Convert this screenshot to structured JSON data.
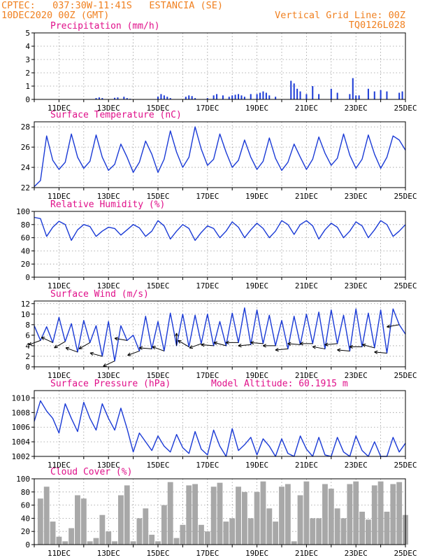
{
  "header": {
    "line1_left": "CPTEC:   037:30W-11:41S   ESTANCIA (SE)",
    "line2_left": "10DEC2020 00Z (GMT)",
    "line2_right": "Vertical Grid Line: 00Z",
    "line3_right": "TQ0126L028"
  },
  "colors": {
    "header": "#f08020",
    "title": "#e0108a",
    "series": "#1a3ad6",
    "cloud": "#a8a8a8",
    "arrow": "#000000",
    "grid": "#9a9a9a"
  },
  "x_axis": {
    "start": "2020-12-10T00Z",
    "end": "2020-12-25T00Z",
    "tick_labels": [
      "11DEC",
      "13DEC",
      "15DEC",
      "17DEC",
      "19DEC",
      "21DEC",
      "23DEC",
      "25DEC"
    ]
  },
  "chart_data": [
    {
      "id": "precip",
      "type": "bar",
      "title": "Precipitation (mm/h)",
      "ylim": [
        0,
        5
      ],
      "yticks": [
        0,
        1,
        2,
        3,
        4,
        5
      ],
      "x": [
        "12DEC12Z",
        "12DEC15Z",
        "12DEC18Z",
        "13DEC06Z",
        "13DEC09Z",
        "13DEC15Z",
        "13DEC18Z",
        "13DEC21Z",
        "15DEC00Z",
        "15DEC03Z",
        "15DEC06Z",
        "15DEC09Z",
        "15DEC12Z",
        "16DEC03Z",
        "16DEC06Z",
        "16DEC09Z",
        "16DEC12Z",
        "17DEC00Z",
        "17DEC06Z",
        "17DEC09Z",
        "17DEC15Z",
        "17DEC21Z",
        "18DEC00Z",
        "18DEC03Z",
        "18DEC06Z",
        "18DEC09Z",
        "18DEC12Z",
        "18DEC18Z",
        "19DEC00Z",
        "19DEC03Z",
        "19DEC06Z",
        "19DEC09Z",
        "19DEC12Z",
        "19DEC18Z",
        "20DEC09Z",
        "20DEC12Z",
        "20DEC15Z",
        "20DEC18Z",
        "21DEC00Z",
        "21DEC06Z",
        "21DEC12Z",
        "22DEC00Z",
        "22DEC06Z",
        "22DEC18Z",
        "22DEC21Z",
        "23DEC00Z",
        "23DEC03Z",
        "23DEC12Z",
        "23DEC18Z",
        "24DEC00Z",
        "24DEC06Z",
        "24DEC18Z",
        "24DEC21Z"
      ],
      "values": [
        0.1,
        0.15,
        0.1,
        0.12,
        0.15,
        0.2,
        0.1,
        0.05,
        0.2,
        0.4,
        0.3,
        0.2,
        0.1,
        0.2,
        0.3,
        0.25,
        0.1,
        0.1,
        0.3,
        0.4,
        0.3,
        0.2,
        0.3,
        0.35,
        0.4,
        0.3,
        0.2,
        0.4,
        0.4,
        0.5,
        0.6,
        0.5,
        0.3,
        0.2,
        1.4,
        1.2,
        0.8,
        0.6,
        0.4,
        1.0,
        0.4,
        0.8,
        0.5,
        0.4,
        1.6,
        0.3,
        0.3,
        0.8,
        0.6,
        0.7,
        0.6,
        0.5,
        0.6
      ]
    },
    {
      "id": "temp",
      "type": "line",
      "title": "Surface Temperature (nC)",
      "ylim": [
        22,
        28.5
      ],
      "yticks": [
        22,
        24,
        26,
        28
      ],
      "x_hours": [
        0,
        6,
        12,
        18,
        24,
        30,
        36,
        42,
        48,
        54,
        60,
        66,
        72,
        78,
        84,
        90,
        96,
        102,
        108,
        114,
        120,
        126,
        132,
        138,
        144,
        150,
        156,
        162,
        168,
        174,
        180,
        186,
        192,
        198,
        204,
        210,
        216,
        222,
        228,
        234,
        240,
        246,
        252,
        258,
        264,
        270,
        276,
        282,
        288,
        294,
        300,
        306,
        312,
        318,
        324,
        330,
        336,
        342,
        348,
        354,
        360
      ],
      "values": [
        22.1,
        22.7,
        27.1,
        24.7,
        23.8,
        24.5,
        27.3,
        25.0,
        23.9,
        24.6,
        27.2,
        25.0,
        23.7,
        24.3,
        26.3,
        25.0,
        23.5,
        24.5,
        26.6,
        25.3,
        23.5,
        24.8,
        27.6,
        25.5,
        24.0,
        25.0,
        28.0,
        25.8,
        24.2,
        24.8,
        27.3,
        25.5,
        24.0,
        24.7,
        26.7,
        25.0,
        23.8,
        24.6,
        26.9,
        24.9,
        23.7,
        24.5,
        26.3,
        25.0,
        23.8,
        24.8,
        27.0,
        25.4,
        24.2,
        24.9,
        27.3,
        25.2,
        23.9,
        24.8,
        27.2,
        25.3,
        23.9,
        25.0,
        27.1,
        26.7,
        25.7
      ]
    },
    {
      "id": "rh",
      "type": "line",
      "title": "Relative Humidity (%)",
      "ylim": [
        0,
        100
      ],
      "yticks": [
        0,
        20,
        40,
        60,
        80,
        100
      ],
      "x_hours": [
        0,
        6,
        12,
        18,
        24,
        30,
        36,
        42,
        48,
        54,
        60,
        66,
        72,
        78,
        84,
        90,
        96,
        102,
        108,
        114,
        120,
        126,
        132,
        138,
        144,
        150,
        156,
        162,
        168,
        174,
        180,
        186,
        192,
        198,
        204,
        210,
        216,
        222,
        228,
        234,
        240,
        246,
        252,
        258,
        264,
        270,
        276,
        282,
        288,
        294,
        300,
        306,
        312,
        318,
        324,
        330,
        336,
        342,
        348,
        354,
        360
      ],
      "values": [
        91,
        89,
        62,
        76,
        85,
        80,
        56,
        72,
        80,
        77,
        62,
        70,
        76,
        74,
        64,
        72,
        80,
        75,
        62,
        70,
        86,
        78,
        58,
        70,
        80,
        74,
        56,
        68,
        78,
        74,
        60,
        70,
        84,
        76,
        60,
        72,
        82,
        74,
        60,
        70,
        86,
        80,
        65,
        80,
        86,
        78,
        58,
        72,
        82,
        76,
        60,
        70,
        84,
        78,
        60,
        72,
        86,
        80,
        62,
        70,
        80
      ]
    },
    {
      "id": "wind",
      "type": "line",
      "title": "Surface Wind (m/s)",
      "ylim": [
        0,
        12.5
      ],
      "yticks": [
        0,
        2,
        4,
        6,
        8,
        10,
        12
      ],
      "x_hours": [
        0,
        6,
        12,
        18,
        24,
        30,
        36,
        42,
        48,
        54,
        60,
        66,
        72,
        78,
        84,
        90,
        96,
        102,
        108,
        114,
        120,
        126,
        132,
        138,
        144,
        150,
        156,
        162,
        168,
        174,
        180,
        186,
        192,
        198,
        204,
        210,
        216,
        222,
        228,
        234,
        240,
        246,
        252,
        258,
        264,
        270,
        276,
        282,
        288,
        294,
        300,
        306,
        312,
        318,
        324,
        330,
        336,
        342,
        348,
        354,
        360
      ],
      "values": [
        7.8,
        5.0,
        7.6,
        4.6,
        9.4,
        4.8,
        8.2,
        2.8,
        8.8,
        4.6,
        7.8,
        2.0,
        8.6,
        1.1,
        7.8,
        5.0,
        6.0,
        3.0,
        9.6,
        3.4,
        8.6,
        3.0,
        10.2,
        4.0,
        10.0,
        3.8,
        9.8,
        4.4,
        10.0,
        4.0,
        8.6,
        4.0,
        10.2,
        4.6,
        11.2,
        4.2,
        10.8,
        4.4,
        9.8,
        4.0,
        8.8,
        3.4,
        9.6,
        4.2,
        10.0,
        4.4,
        10.4,
        3.4,
        10.8,
        4.4,
        9.8,
        3.0,
        11.0,
        3.8,
        10.2,
        3.6,
        10.8,
        2.6,
        11.0,
        8.0,
        6.2
      ]
    },
    {
      "id": "pres",
      "type": "line",
      "title": "Surface Pressure (hPa)",
      "annotation": "Model Altitude: 60.1915 m",
      "ylim": [
        1002,
        1011
      ],
      "yticks": [
        1002,
        1004,
        1006,
        1008,
        1010
      ],
      "x_hours": [
        0,
        6,
        12,
        18,
        24,
        30,
        36,
        42,
        48,
        54,
        60,
        66,
        72,
        78,
        84,
        90,
        96,
        102,
        108,
        114,
        120,
        126,
        132,
        138,
        144,
        150,
        156,
        162,
        168,
        174,
        180,
        186,
        192,
        198,
        204,
        210,
        216,
        222,
        228,
        234,
        240,
        246,
        252,
        258,
        264,
        270,
        276,
        282,
        288,
        294,
        300,
        306,
        312,
        318,
        324,
        330,
        336,
        342,
        348,
        354,
        360
      ],
      "values": [
        1006.8,
        1009.6,
        1008.2,
        1007.2,
        1005.2,
        1009.2,
        1007.2,
        1005.4,
        1009.4,
        1007.2,
        1005.6,
        1009.2,
        1007.2,
        1005.6,
        1008.6,
        1005.8,
        1002.6,
        1005.2,
        1004.0,
        1002.8,
        1004.8,
        1003.4,
        1002.6,
        1005.0,
        1003.2,
        1002.4,
        1005.4,
        1003.0,
        1002.2,
        1005.6,
        1003.4,
        1002.0,
        1005.8,
        1002.8,
        1003.6,
        1004.6,
        1002.2,
        1004.4,
        1003.4,
        1001.8,
        1004.4,
        1002.4,
        1001.6,
        1004.8,
        1003.0,
        1002.0,
        1004.6,
        1002.2,
        1001.4,
        1004.6,
        1002.6,
        1001.6,
        1004.8,
        1002.8,
        1002.0,
        1004.0,
        1002.0,
        1002.0,
        1004.6,
        1002.6,
        1003.8
      ]
    },
    {
      "id": "cloud",
      "type": "bar",
      "title": "Cloud Cover (%)",
      "ylim": [
        0,
        100
      ],
      "yticks": [
        0,
        20,
        40,
        60,
        80,
        100
      ],
      "x_hours": [
        0,
        6,
        12,
        18,
        24,
        30,
        36,
        42,
        48,
        54,
        60,
        66,
        72,
        78,
        84,
        90,
        96,
        102,
        108,
        114,
        120,
        126,
        132,
        138,
        144,
        150,
        156,
        162,
        168,
        174,
        180,
        186,
        192,
        198,
        204,
        210,
        216,
        222,
        228,
        234,
        240,
        246,
        252,
        258,
        264,
        270,
        276,
        282,
        288,
        294,
        300,
        306,
        312,
        318,
        324,
        330,
        336,
        342,
        348,
        354,
        360
      ],
      "values": [
        0,
        70,
        88,
        35,
        12,
        5,
        25,
        75,
        70,
        5,
        10,
        45,
        20,
        5,
        75,
        90,
        5,
        40,
        55,
        15,
        5,
        60,
        95,
        10,
        30,
        90,
        92,
        30,
        20,
        88,
        94,
        35,
        40,
        88,
        80,
        40,
        80,
        96,
        55,
        35,
        88,
        92,
        5,
        75,
        96,
        40,
        40,
        92,
        85,
        55,
        40,
        92,
        96,
        50,
        38,
        90,
        96,
        50,
        92,
        95,
        45
      ]
    }
  ]
}
